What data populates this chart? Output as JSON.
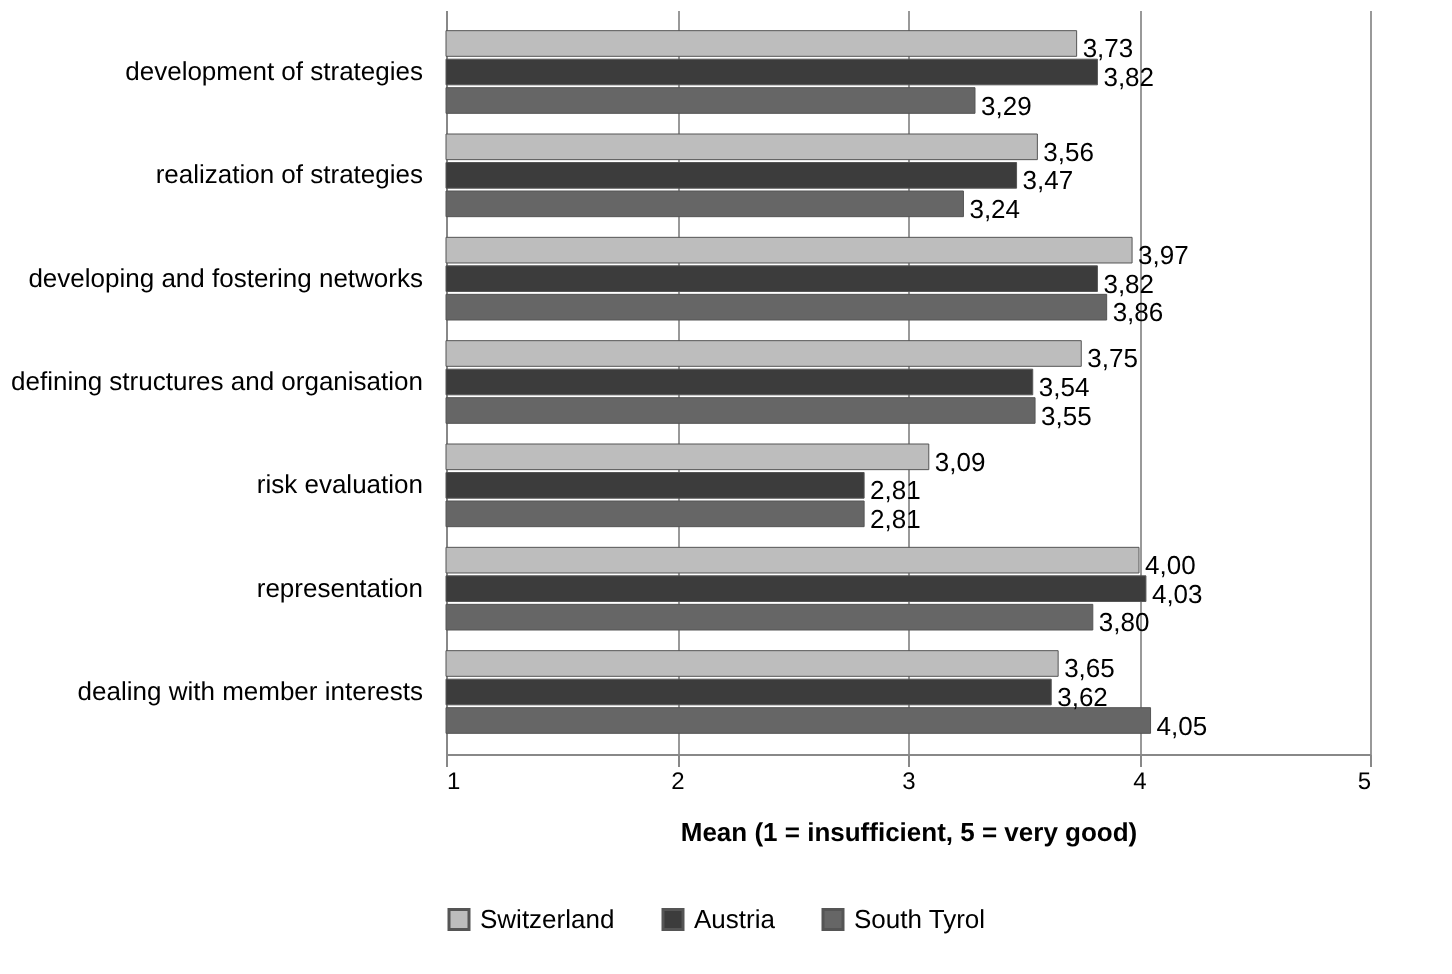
{
  "chart_data": {
    "type": "bar",
    "orientation": "horizontal",
    "xlabel": "Mean (1 = insufficient, 5 = very good)",
    "categories": [
      "development of strategies",
      "realization of strategies",
      "developing and fostering networks",
      "defining structures and organisation",
      "risk evaluation",
      "representation",
      "dealing with member interests"
    ],
    "series": [
      {
        "name": "Switzerland",
        "color": "#bdbdbd",
        "values": [
          3.73,
          3.56,
          3.97,
          3.75,
          3.09,
          4.0,
          3.65
        ],
        "value_labels": [
          "3,73",
          "3,56",
          "3,97",
          "3,75",
          "3,09",
          "4,00",
          "3,65"
        ]
      },
      {
        "name": "Austria",
        "color": "#3c3c3c",
        "values": [
          3.82,
          3.47,
          3.82,
          3.54,
          2.81,
          4.03,
          3.62
        ],
        "value_labels": [
          "3,82",
          "3,47",
          "3,82",
          "3,54",
          "2,81",
          "4,03",
          "3,62"
        ]
      },
      {
        "name": "South Tyrol",
        "color": "#666666",
        "values": [
          3.29,
          3.24,
          3.86,
          3.55,
          2.81,
          3.8,
          4.05
        ],
        "value_labels": [
          "3,29",
          "3,24",
          "3,86",
          "3,55",
          "2,81",
          "3,80",
          "4,05"
        ]
      }
    ],
    "xlim": [
      1,
      5
    ],
    "xticks": [
      1,
      2,
      3,
      4,
      5
    ],
    "grid": "x",
    "legend": "bottom"
  }
}
